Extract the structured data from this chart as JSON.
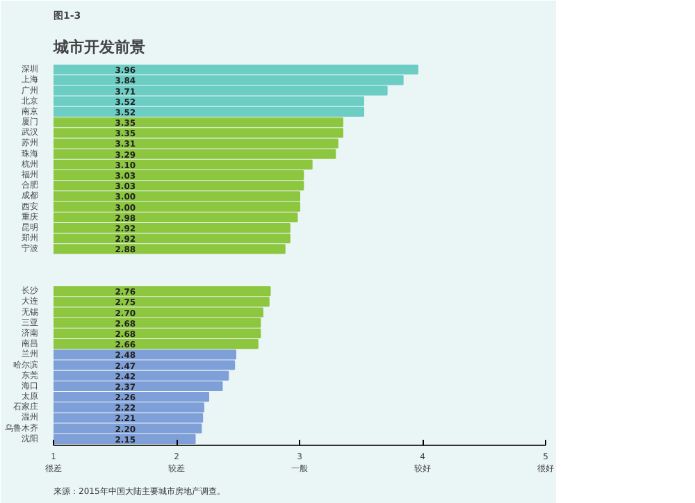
{
  "chart_data": {
    "type": "bar",
    "orientation": "horizontal",
    "subtitle": "图1-3",
    "title": "城市开发前景",
    "categories": [
      "深圳",
      "上海",
      "广州",
      "北京",
      "南京",
      "厦门",
      "武汉",
      "苏州",
      "珠海",
      "杭州",
      "福州",
      "合肥",
      "成都",
      "西安",
      "重庆",
      "昆明",
      "郑州",
      "宁波",
      null,
      null,
      null,
      "长沙",
      "大连",
      "无锡",
      "三亚",
      "济南",
      "南昌",
      "兰州",
      "哈尔滨",
      "东莞",
      "海口",
      "太原",
      "石家庄",
      "温州",
      "乌鲁木齐",
      "沈阳"
    ],
    "values": [
      3.96,
      3.84,
      3.71,
      3.52,
      3.52,
      3.35,
      3.35,
      3.31,
      3.29,
      3.1,
      3.03,
      3.03,
      3.0,
      3.0,
      2.98,
      2.92,
      2.92,
      2.88,
      null,
      null,
      null,
      2.76,
      2.75,
      2.7,
      2.68,
      2.68,
      2.66,
      2.48,
      2.47,
      2.42,
      2.37,
      2.26,
      2.22,
      2.21,
      2.2,
      2.15
    ],
    "value_labels": [
      "3.96",
      "3.84",
      "3.71",
      "3.52",
      "3.52",
      "3.35",
      "3.35",
      "3.31",
      "3.29",
      "3.10",
      "3.03",
      "3.03",
      "3.00",
      "3.00",
      "2.98",
      "2.92",
      "2.92",
      "2.88",
      null,
      null,
      null,
      "2.76",
      "2.75",
      "2.70",
      "2.68",
      "2.68",
      "2.66",
      "2.48",
      "2.47",
      "2.42",
      "2.37",
      "2.26",
      "2.22",
      "2.21",
      "2.20",
      "2.15"
    ],
    "colors": [
      "#6ccdc5",
      "#6ccdc5",
      "#6ccdc5",
      "#6ccdc5",
      "#6ccdc5",
      "#8dc63f",
      "#8dc63f",
      "#8dc63f",
      "#8dc63f",
      "#8dc63f",
      "#8dc63f",
      "#8dc63f",
      "#8dc63f",
      "#8dc63f",
      "#8dc63f",
      "#8dc63f",
      "#8dc63f",
      "#8dc63f",
      "#8dc63f",
      "#8dc63f",
      "#8dc63f",
      "#8dc63f",
      "#8dc63f",
      "#8dc63f",
      "#8dc63f",
      "#8dc63f",
      "#8dc63f",
      "#7f9fd8",
      "#7f9fd8",
      "#7f9fd8",
      "#7f9fd8",
      "#7f9fd8",
      "#7f9fd8",
      "#7f9fd8",
      "#7f9fd8",
      "#7f9fd8"
    ],
    "xlim": [
      1,
      5
    ],
    "xticks": [
      {
        "value": 1,
        "label": "1\n很差"
      },
      {
        "value": 2,
        "label": "2\n较差"
      },
      {
        "value": 3,
        "label": "3\n一般"
      },
      {
        "value": 4,
        "label": "4\n较好"
      },
      {
        "value": 5,
        "label": "5\n很好"
      }
    ],
    "annotations": [
      "来源：2015年中国大陆主要城市房地产调查。"
    ]
  }
}
